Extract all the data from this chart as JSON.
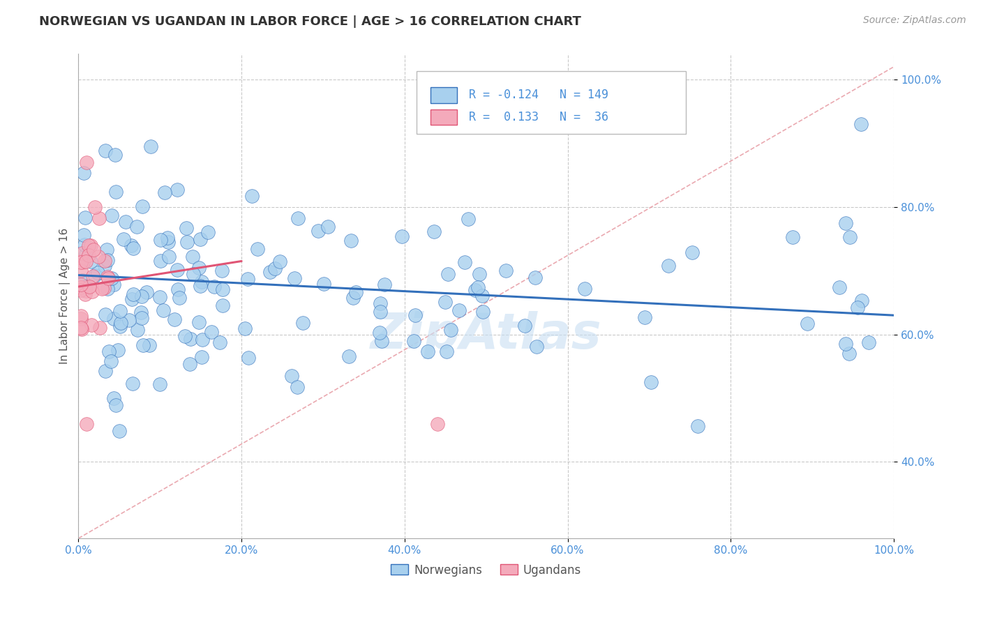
{
  "title": "NORWEGIAN VS UGANDAN IN LABOR FORCE | AGE > 16 CORRELATION CHART",
  "source_text": "Source: ZipAtlas.com",
  "ylabel": "In Labor Force | Age > 16",
  "xlim": [
    0.0,
    1.0
  ],
  "ylim": [
    0.28,
    1.04
  ],
  "x_ticks": [
    0.0,
    0.2,
    0.4,
    0.6,
    0.8,
    1.0
  ],
  "y_ticks": [
    0.4,
    0.6,
    0.8,
    1.0
  ],
  "x_tick_labels": [
    "0.0%",
    "20.0%",
    "40.0%",
    "60.0%",
    "80.0%",
    "100.0%"
  ],
  "y_tick_labels": [
    "40.0%",
    "60.0%",
    "80.0%",
    "100.0%"
  ],
  "legend_labels": [
    "Norwegians",
    "Ugandans"
  ],
  "legend_r": [
    -0.124,
    0.133
  ],
  "legend_n": [
    149,
    36
  ],
  "blue_color": "#A8D0EE",
  "pink_color": "#F4AABB",
  "blue_line_color": "#3370BB",
  "pink_line_color": "#E05575",
  "background_color": "#FFFFFF",
  "grid_color": "#BBBBBB",
  "diagonal_color": "#E8A0A8",
  "watermark": "ZipAtlas",
  "title_fontsize": 13,
  "axis_label_fontsize": 11,
  "tick_fontsize": 11,
  "source_fontsize": 10,
  "legend_fontsize": 13,
  "watermark_fontsize": 52,
  "watermark_color": "#C8DFF2",
  "watermark_alpha": 0.6,
  "norw_trend_x0": 0.0,
  "norw_trend_y0": 0.693,
  "norw_trend_x1": 1.0,
  "norw_trend_y1": 0.63,
  "ugand_trend_x0": 0.0,
  "ugand_trend_y0": 0.675,
  "ugand_trend_x1": 0.2,
  "ugand_trend_y1": 0.715
}
